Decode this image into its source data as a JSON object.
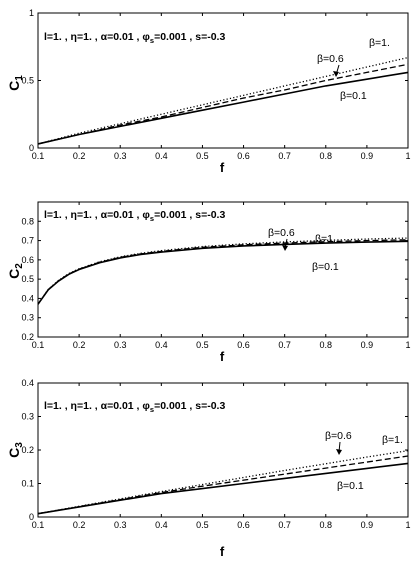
{
  "chart_data": [
    {
      "type": "line",
      "ylabel": "C",
      "ylabel_sub": "1",
      "xlabel": "f",
      "xlim": [
        0.1,
        1
      ],
      "ylim": [
        0,
        1
      ],
      "xticks": [
        "0.1",
        "0.2",
        "0.3",
        "0.4",
        "0.5",
        "0.6",
        "0.7",
        "0.8",
        "0.9",
        "1"
      ],
      "yticks": [
        "0",
        "0.5",
        "1"
      ],
      "ytick_values": [
        0,
        0.5,
        1
      ],
      "annotation": "l=1. , η=1. , α=0.01 , φ",
      "annotation_sub": "s",
      "annotation_tail": "=0.001 , s=-0.3",
      "labels": {
        "b06": "β=0.6",
        "b1": "β=1.",
        "b01": "β=0.1"
      },
      "x": [
        0.1,
        0.2,
        0.3,
        0.4,
        0.5,
        0.6,
        0.7,
        0.8,
        0.9,
        1.0
      ],
      "series": [
        {
          "label_key": "b01",
          "style": "solid",
          "values": [
            0.03,
            0.1,
            0.16,
            0.22,
            0.28,
            0.34,
            0.4,
            0.46,
            0.51,
            0.56
          ]
        },
        {
          "label_key": "b06",
          "style": "dashed",
          "values": [
            0.03,
            0.1,
            0.17,
            0.23,
            0.3,
            0.37,
            0.43,
            0.5,
            0.56,
            0.62
          ]
        },
        {
          "label_key": "b1",
          "style": "dotted",
          "values": [
            0.03,
            0.11,
            0.18,
            0.25,
            0.32,
            0.39,
            0.46,
            0.53,
            0.6,
            0.67
          ]
        }
      ]
    },
    {
      "type": "line",
      "ylabel": "C",
      "ylabel_sub": "2",
      "xlabel": "f",
      "xlim": [
        0.1,
        1
      ],
      "ylim": [
        0.2,
        0.9
      ],
      "xticks": [
        "0.1",
        "0.2",
        "0.3",
        "0.4",
        "0.5",
        "0.6",
        "0.7",
        "0.8",
        "0.9",
        "1"
      ],
      "yticks": [
        "0.2",
        "0.3",
        "0.4",
        "0.5",
        "0.6",
        "0.7",
        "0.8"
      ],
      "ytick_values": [
        0.2,
        0.3,
        0.4,
        0.5,
        0.6,
        0.7,
        0.8
      ],
      "annotation": "l=1. , η=1. , α=0.01 , φ",
      "annotation_sub": "s",
      "annotation_tail": "=0.001 , s=-0.3",
      "labels": {
        "b06": "β=0.6",
        "b1": "β=1.",
        "b01": "β=0.1"
      },
      "x": [
        0.1,
        0.125,
        0.15,
        0.175,
        0.2,
        0.25,
        0.3,
        0.35,
        0.4,
        0.5,
        0.6,
        0.7,
        0.8,
        0.9,
        1.0
      ],
      "series": [
        {
          "label_key": "b01",
          "style": "solid",
          "values": [
            0.37,
            0.445,
            0.49,
            0.525,
            0.55,
            0.585,
            0.61,
            0.628,
            0.64,
            0.66,
            0.672,
            0.68,
            0.687,
            0.692,
            0.696
          ]
        },
        {
          "label_key": "b06",
          "style": "dashed",
          "values": [
            0.37,
            0.446,
            0.492,
            0.527,
            0.552,
            0.588,
            0.613,
            0.631,
            0.644,
            0.665,
            0.678,
            0.687,
            0.694,
            0.7,
            0.704
          ]
        },
        {
          "label_key": "b1",
          "style": "dotted",
          "values": [
            0.37,
            0.447,
            0.494,
            0.529,
            0.554,
            0.59,
            0.616,
            0.634,
            0.648,
            0.669,
            0.683,
            0.693,
            0.701,
            0.708,
            0.713
          ]
        }
      ]
    },
    {
      "type": "line",
      "ylabel": "C",
      "ylabel_sub": "3",
      "xlabel": "f",
      "xlim": [
        0.1,
        1
      ],
      "ylim": [
        0,
        0.4
      ],
      "xticks": [
        "0.1",
        "0.2",
        "0.3",
        "0.4",
        "0.5",
        "0.6",
        "0.7",
        "0.8",
        "0.9",
        "1"
      ],
      "yticks": [
        "0",
        "0.1",
        "0.2",
        "0.3",
        "0.4"
      ],
      "ytick_values": [
        0,
        0.1,
        0.2,
        0.3,
        0.4
      ],
      "annotation": "l=1. , η=1. , α=0.01 , φ",
      "annotation_sub": "s",
      "annotation_tail": "=0.001 , s=-0.3",
      "labels": {
        "b06": "β=0.6",
        "b1": "β=1.",
        "b01": "β=0.1"
      },
      "x": [
        0.1,
        0.2,
        0.3,
        0.4,
        0.5,
        0.6,
        0.7,
        0.8,
        0.9,
        1.0
      ],
      "series": [
        {
          "label_key": "b01",
          "style": "solid",
          "values": [
            0.01,
            0.03,
            0.05,
            0.07,
            0.085,
            0.1,
            0.115,
            0.13,
            0.145,
            0.16
          ]
        },
        {
          "label_key": "b06",
          "style": "dashed",
          "values": [
            0.01,
            0.031,
            0.052,
            0.073,
            0.092,
            0.11,
            0.128,
            0.146,
            0.164,
            0.182
          ]
        },
        {
          "label_key": "b1",
          "style": "dotted",
          "values": [
            0.01,
            0.032,
            0.054,
            0.076,
            0.097,
            0.118,
            0.139,
            0.159,
            0.179,
            0.198
          ]
        }
      ]
    }
  ]
}
